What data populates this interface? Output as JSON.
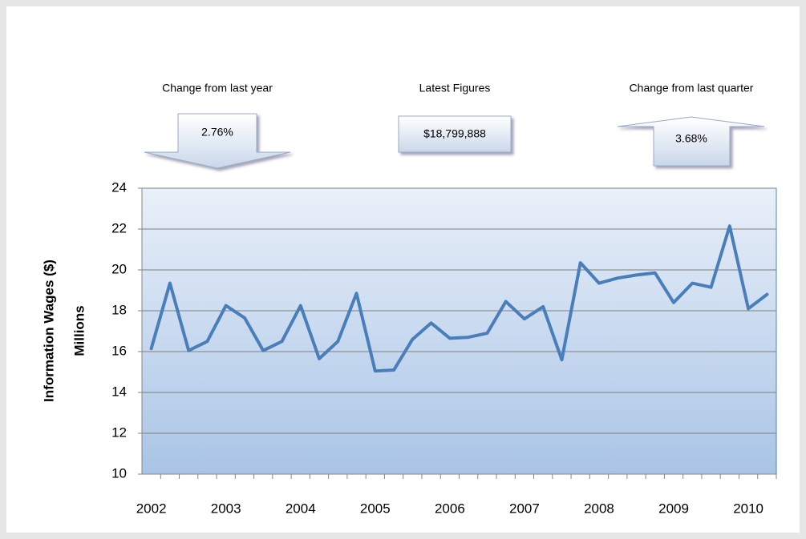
{
  "chart_data": {
    "type": "line",
    "y_axis_label": "Information Wages ($)",
    "y_axis_units": "Millions",
    "categories": [
      "2002",
      null,
      null,
      null,
      "2003",
      null,
      null,
      null,
      "2004",
      null,
      null,
      null,
      "2005",
      null,
      null,
      null,
      "2006",
      null,
      null,
      null,
      "2007",
      null,
      null,
      null,
      "2008",
      null,
      null,
      null,
      "2009",
      null,
      null,
      null,
      "2010",
      null
    ],
    "series": [
      {
        "name": "Information Wages",
        "color": "#4a7ebb",
        "values": [
          16.15,
          19.35,
          16.05,
          16.5,
          18.25,
          17.65,
          16.05,
          16.5,
          18.25,
          15.65,
          16.5,
          18.85,
          15.05,
          15.1,
          16.6,
          17.4,
          16.65,
          16.7,
          16.9,
          18.45,
          17.6,
          18.2,
          15.6,
          20.35,
          19.35,
          19.6,
          19.75,
          19.85,
          18.4,
          19.35,
          19.15,
          22.15,
          18.1,
          18.8
        ]
      }
    ],
    "ylim": [
      10,
      24
    ],
    "yticks": [
      10,
      12,
      14,
      16,
      18,
      20,
      22,
      24
    ],
    "grid": true
  },
  "indicators": [
    {
      "label": "Change from last year",
      "value": "2.76%",
      "direction": "down"
    },
    {
      "label": "Latest Figures",
      "value": "$18,799,888",
      "direction": "none"
    },
    {
      "label": "Change from last quarter",
      "value": "3.68%",
      "direction": "up"
    }
  ]
}
